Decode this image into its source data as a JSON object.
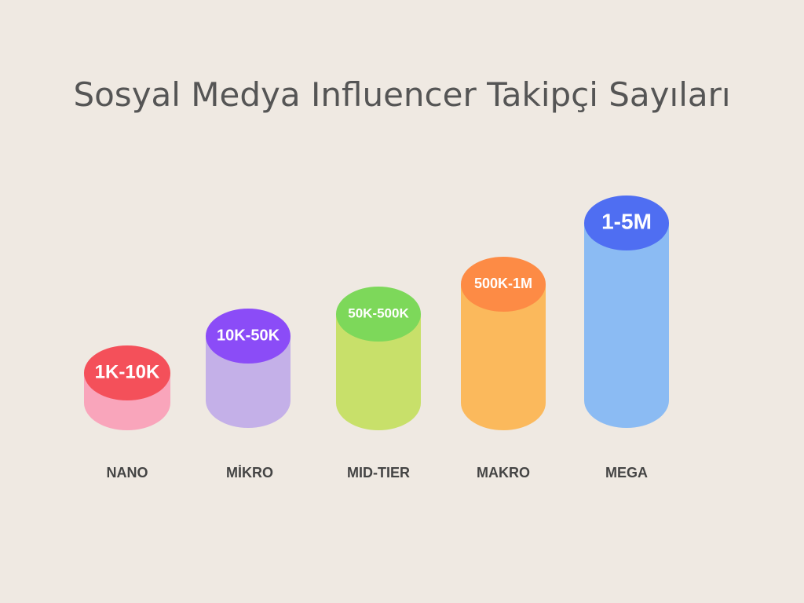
{
  "title": "Sosyal Medya Influencer Takipçi Sayıları",
  "items": [
    {
      "name": "NANO",
      "range": "1K-10K"
    },
    {
      "name": "MİKRO",
      "range": "10K-50K"
    },
    {
      "name": "MID-TIER",
      "range": "50K-500K"
    },
    {
      "name": "MAKRO",
      "range": "500K-1M"
    },
    {
      "name": "MEGA",
      "range": "1-5M"
    }
  ]
}
